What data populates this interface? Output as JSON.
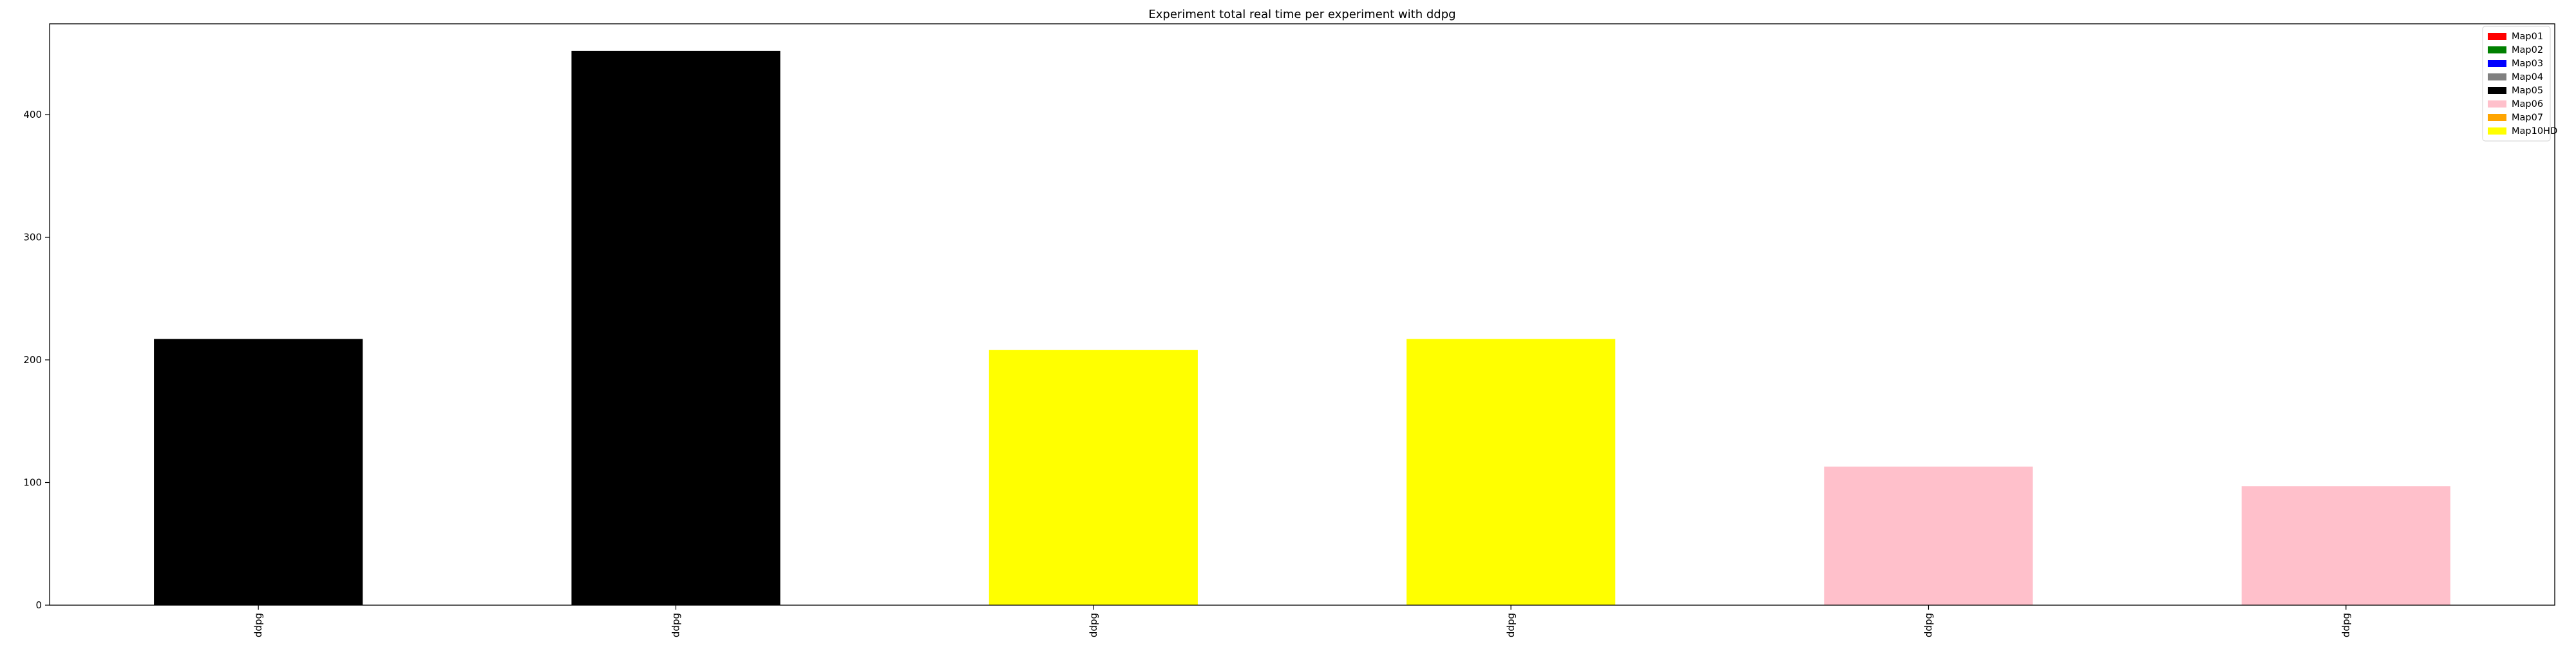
{
  "chart_data": {
    "type": "bar",
    "title": "Experiment total real time per experiment with ddpg",
    "xlabel": "",
    "ylabel": "",
    "categories": [
      "ddpg",
      "ddpg",
      "ddpg",
      "ddpg",
      "ddpg",
      "ddpg"
    ],
    "values": [
      217,
      452,
      208,
      217,
      113,
      97
    ],
    "bar_colors": [
      "#000000",
      "#000000",
      "#ffff00",
      "#ffff00",
      "#ffc0cb",
      "#ffc0cb"
    ],
    "ylim": [
      0,
      474
    ],
    "yticks": [
      0,
      100,
      200,
      300,
      400
    ],
    "grid": false,
    "legend": {
      "placement": "top-right",
      "entries": [
        {
          "label": "Map01",
          "color": "#ff0000"
        },
        {
          "label": "Map02",
          "color": "#008000"
        },
        {
          "label": "Map03",
          "color": "#0000ff"
        },
        {
          "label": "Map04",
          "color": "#808080"
        },
        {
          "label": "Map05",
          "color": "#000000"
        },
        {
          "label": "Map06",
          "color": "#ffc0cb"
        },
        {
          "label": "Map07",
          "color": "#ffa500"
        },
        {
          "label": "Map10HD",
          "color": "#ffff00"
        }
      ]
    }
  }
}
